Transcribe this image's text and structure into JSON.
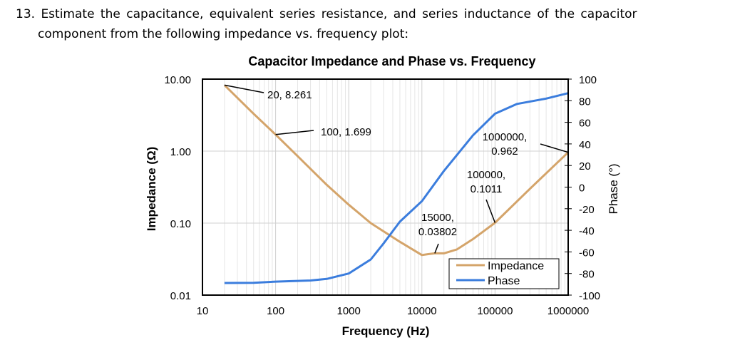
{
  "question": {
    "line1": "13. Estimate the capacitance, equivalent series resistance, and series inductance of the capacitor",
    "line2": "component from the following impedance vs. frequency plot:"
  },
  "chart_data": {
    "type": "line",
    "title": "Capacitor Impedance and Phase vs. Frequency",
    "xlabel": "Frequency (Hz)",
    "ylabel": "Impedance (Ω)",
    "y2label": "Phase (°)",
    "xscale": "log",
    "yscale": "log",
    "xlim": [
      10,
      1000000
    ],
    "ylim": [
      0.01,
      10
    ],
    "y2lim": [
      -100,
      100
    ],
    "x_ticks": [
      "10",
      "100",
      "1000",
      "10000",
      "100000",
      "1000000"
    ],
    "y_ticks": [
      "10.00",
      "1.00",
      "0.10",
      "0.01"
    ],
    "y2_ticks": [
      "100",
      "80",
      "60",
      "40",
      "20",
      "0",
      "-20",
      "-40",
      "-60",
      "-80",
      "-100"
    ],
    "grid": true,
    "legend": "bottom-right",
    "series": [
      {
        "name": "Impedance",
        "axis": "left",
        "color": "#d4a46a",
        "x": [
          20,
          50,
          100,
          200,
          500,
          1000,
          2000,
          5000,
          10000,
          12000,
          15000,
          20000,
          30000,
          50000,
          100000,
          300000,
          1000000
        ],
        "y": [
          8.261,
          3.3,
          1.699,
          0.85,
          0.34,
          0.18,
          0.1,
          0.055,
          0.036,
          0.037,
          0.03802,
          0.038,
          0.043,
          0.06,
          0.1011,
          0.3,
          0.962
        ]
      },
      {
        "name": "Phase",
        "axis": "right",
        "color": "#3b7ddd",
        "x": [
          20,
          50,
          100,
          300,
          500,
          1000,
          2000,
          3000,
          5000,
          10000,
          20000,
          50000,
          100000,
          200000,
          500000,
          1000000
        ],
        "y": [
          -88.8,
          -88.6,
          -87.5,
          -86.5,
          -85,
          -80,
          -67,
          -52,
          -32,
          -13,
          15,
          48,
          68,
          77,
          82,
          87
        ]
      }
    ],
    "annotations": [
      {
        "text": [
          "20, 8.261"
        ],
        "x": 20,
        "y": 8.261
      },
      {
        "text": [
          "100, 1.699"
        ],
        "x": 100,
        "y": 1.699
      },
      {
        "text": [
          "15000,",
          "0.03802"
        ],
        "x": 15000,
        "y": 0.03802
      },
      {
        "text": [
          "100000,",
          "0.1011"
        ],
        "x": 100000,
        "y": 0.1011
      },
      {
        "text": [
          "1000000,",
          "0.962"
        ],
        "x": 1000000,
        "y": 0.962
      }
    ]
  }
}
